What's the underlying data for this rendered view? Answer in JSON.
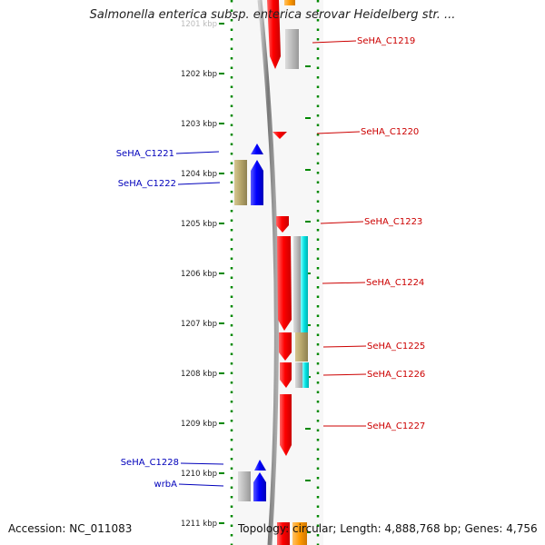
{
  "title": "Salmonella enterica subsp. enterica serovar Heidelberg str. ...",
  "accession": "Accession: NC_011083",
  "topology": "Topology: circular; Length: 4,888,768 bp; Genes: 4,756",
  "ruler": {
    "unit": "kbp",
    "ticks": [
      "1201 kbp",
      "1202 kbp",
      "1203 kbp",
      "1204 kbp",
      "1205 kbp",
      "1206 kbp",
      "1207 kbp",
      "1208 kbp",
      "1209 kbp",
      "1210 kbp",
      "1211 kbp"
    ]
  },
  "genes_forward": [
    {
      "label": "SeHA_C1219"
    },
    {
      "label": "SeHA_C1220"
    },
    {
      "label": "SeHA_C1223"
    },
    {
      "label": "SeHA_C1224"
    },
    {
      "label": "SeHA_C1225"
    },
    {
      "label": "SeHA_C1226"
    },
    {
      "label": "SeHA_C1227"
    }
  ],
  "genes_reverse": [
    {
      "label": "SeHA_C1221"
    },
    {
      "label": "SeHA_C1222"
    },
    {
      "label": "SeHA_C1228"
    },
    {
      "label": "wrbA"
    }
  ],
  "colors": {
    "forward_gene": "#ff0000",
    "reverse_gene": "#0000ff",
    "forward_label": "#cc0000",
    "reverse_label": "#0000bb",
    "cds_grey": "#bbbbbb",
    "cds_cyan": "#00e0e0",
    "cds_khaki": "#b5a56a",
    "cds_orange": "#ff9900",
    "backbone": "#888888",
    "dots": "#008800"
  }
}
